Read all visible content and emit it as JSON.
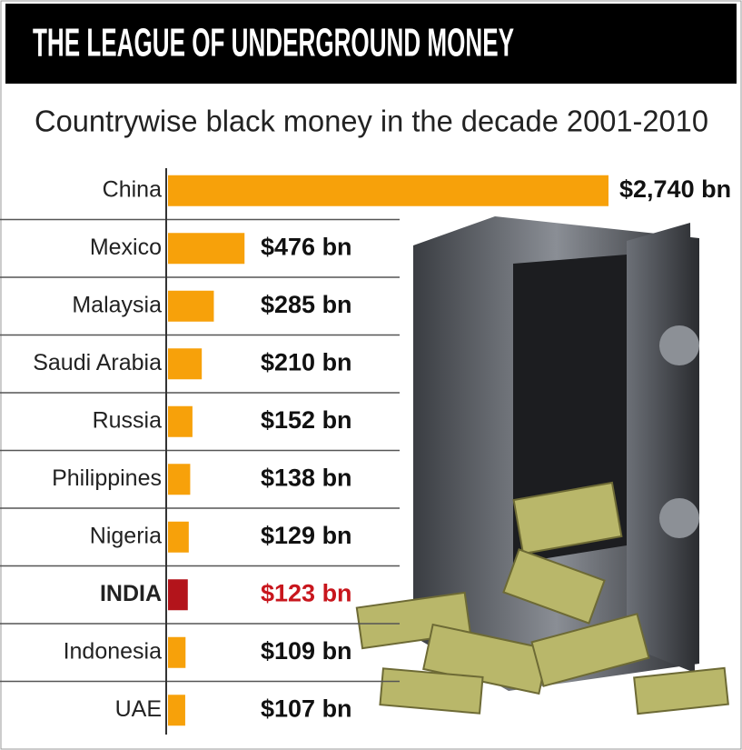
{
  "chart_data": {
    "type": "bar",
    "orientation": "horizontal",
    "title": "THE LEAGUE OF UNDERGROUND MONEY",
    "subtitle": "Countrywise black money in the decade 2001-2010",
    "categories": [
      "China",
      "Mexico",
      "Malaysia",
      "Saudi Arabia",
      "Russia",
      "Philippines",
      "Nigeria",
      "INDIA",
      "Indonesia",
      "UAE"
    ],
    "values": [
      2740,
      476,
      285,
      210,
      152,
      138,
      129,
      123,
      109,
      107
    ],
    "value_labels": [
      "$2,740 bn",
      "$476 bn",
      "$285 bn",
      "$210 bn",
      "$152 bn",
      "$138 bn",
      "$129 bn",
      "$123 bn",
      "$109 bn",
      "$107 bn"
    ],
    "colors": [
      "#f7a10a",
      "#f7a10a",
      "#f7a10a",
      "#f7a10a",
      "#f7a10a",
      "#f7a10a",
      "#f7a10a",
      "#b3141b",
      "#f7a10a",
      "#f7a10a"
    ],
    "label_colors": [
      "#111111",
      "#111111",
      "#111111",
      "#111111",
      "#111111",
      "#111111",
      "#111111",
      "#c8161d",
      "#111111",
      "#111111"
    ]
  }
}
